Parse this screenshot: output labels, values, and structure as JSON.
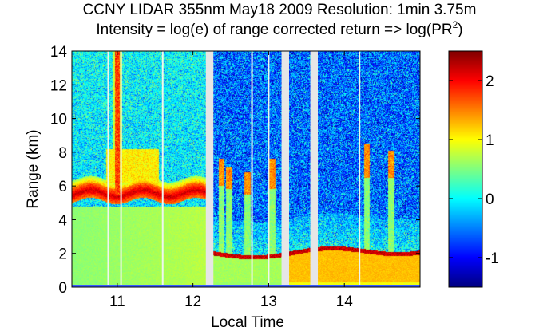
{
  "title": {
    "line1": "CCNY LIDAR 355nm May18 2009 Resolution: 1min 3.75m",
    "line2_prefix": "Intensity = log(e) of range corrected return => log(PR",
    "line2_superscript": "2",
    "line2_suffix": ")"
  },
  "chart_data": {
    "type": "heatmap",
    "title": "CCNY LIDAR 355nm May18 2009 Resolution: 1min 3.75m",
    "subtitle": "Intensity = log(e) of range corrected return => log(PR2)",
    "xlabel": "Local Time",
    "ylabel": "Range (km)",
    "xlim": [
      10.4,
      15.0
    ],
    "ylim": [
      0,
      14
    ],
    "x_ticks": [
      11,
      12,
      13,
      14
    ],
    "x_tick_labels": [
      "11",
      "12",
      "13",
      "14"
    ],
    "y_ticks": [
      0,
      2,
      4,
      6,
      8,
      10,
      12,
      14
    ],
    "y_tick_labels": [
      "0",
      "2",
      "4",
      "6",
      "8",
      "10",
      "12",
      "14"
    ],
    "colorbar": {
      "colormap": "jet",
      "limits": [
        -1.5,
        2.5
      ],
      "ticks": [
        -1,
        0,
        1,
        2
      ],
      "tick_labels": [
        "-1",
        "0",
        "1",
        "2"
      ]
    },
    "data_gaps": [
      {
        "start": 12.17,
        "end": 12.27
      },
      {
        "start": 13.17,
        "end": 13.27
      },
      {
        "start": 13.55,
        "end": 13.65
      }
    ],
    "missing_profiles": [
      10.88,
      11.05,
      11.6,
      12.78,
      13.0,
      14.2
    ],
    "features": [
      {
        "name": "cloud layer",
        "x_start": 10.4,
        "x_end": 12.15,
        "range_km_start": 5.2,
        "range_km_end": 5.9,
        "value": 2.2
      },
      {
        "name": "vertical plume",
        "x": 11.0,
        "range_km_start": 5.5,
        "range_km_end": 14,
        "value": 2.0
      },
      {
        "name": "aerosol boundary layer top",
        "x_start": 12.27,
        "x_end": 15.0,
        "range_km_start": 1.8,
        "range_km_end": 2.2,
        "value": 2.2
      },
      {
        "name": "boundary layer (near surface)",
        "x_start": 13.27,
        "x_end": 15.0,
        "range_km_start": 0.3,
        "range_km_end": 1.8,
        "value": 1.25
      }
    ]
  },
  "colors": {
    "background": "#ffffff",
    "gap_fill": "#e6e6e6",
    "missing_profile": "#eef6ee"
  }
}
